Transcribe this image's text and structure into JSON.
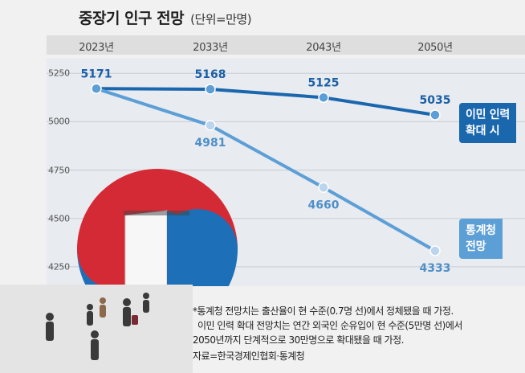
{
  "title": "중장기 인구 전망",
  "unit": "(단위=만명)",
  "chart_data": {
    "type": "line",
    "categories": [
      "2023년",
      "2033년",
      "2043년",
      "2050년"
    ],
    "ylim": [
      4150,
      5330
    ],
    "yticks": [
      4250,
      4500,
      4750,
      5000,
      5250
    ],
    "series": [
      {
        "name": "이민 인력 확대 시",
        "label_lines": [
          "이민 인력",
          "확대 시"
        ],
        "values": [
          5171,
          5168,
          5125,
          5035
        ],
        "color": "#1a67ae"
      },
      {
        "name": "통계청 전망",
        "label_lines": [
          "통계청",
          "전망"
        ],
        "values": [
          5171,
          4981,
          4660,
          4333
        ],
        "color": "#5c9fd6"
      }
    ],
    "point_labels": [
      {
        "series": 0,
        "index": 0,
        "text": "5171"
      },
      {
        "series": 0,
        "index": 1,
        "text": "5168"
      },
      {
        "series": 0,
        "index": 2,
        "text": "5125"
      },
      {
        "series": 0,
        "index": 3,
        "text": "5035"
      },
      {
        "series": 1,
        "index": 1,
        "text": "4981"
      },
      {
        "series": 1,
        "index": 2,
        "text": "4660"
      },
      {
        "series": 1,
        "index": 3,
        "text": "4333"
      }
    ]
  },
  "notes": [
    "*통계청 전망치는 출산율이 현 수준(0.7명 선)에서 정체됐을 때 가정.",
    "이민 인력 확대 전망치는 연간 외국인 순유입이 현 수준(5만명 선)에서",
    "2050년까지 단계적으로 30만명으로 확대됐을 때 가정."
  ],
  "source": "자료=한국경제인협회·통계청",
  "colors": {
    "series_dark": "#1a67ae",
    "series_light": "#5c9fd6",
    "taeguk_red": "#d42a35",
    "taeguk_blue": "#1d6fb8"
  }
}
